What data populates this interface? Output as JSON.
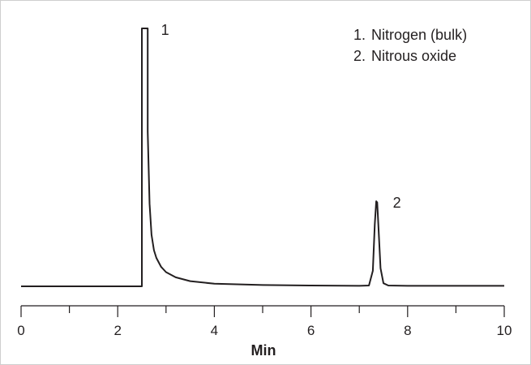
{
  "chart_data": {
    "type": "line",
    "title": "",
    "xlabel": "Min",
    "ylabel": "",
    "xlim": [
      0,
      10
    ],
    "x_ticks": [
      0,
      2,
      4,
      6,
      8,
      10
    ],
    "x_tick_labels": [
      "0",
      "2",
      "4",
      "6",
      "8",
      "10"
    ],
    "x_minor_tick_step": 1,
    "grid": false,
    "legend_position": "top-right",
    "legend": [
      {
        "marker": "1.",
        "name": "Nitrogen (bulk)"
      },
      {
        "marker": "2.",
        "name": "Nitrous oxide"
      }
    ],
    "series": [
      {
        "x": [
          0,
          1,
          2,
          2.4,
          2.5,
          2.5,
          2.62,
          2.62,
          2.66,
          2.7,
          2.75,
          2.8,
          2.9,
          3.0,
          3.2,
          3.5,
          4.0,
          5.0,
          6.0,
          7.0,
          7.2,
          7.28,
          7.32,
          7.35,
          7.37,
          7.4,
          7.44,
          7.5,
          7.6,
          8.0,
          9.0,
          10.0
        ],
        "y": [
          0,
          0,
          0,
          0,
          0,
          1.0,
          1.0,
          0.6,
          0.32,
          0.2,
          0.14,
          0.11,
          0.075,
          0.055,
          0.035,
          0.02,
          0.01,
          0.005,
          0.003,
          0.002,
          0.003,
          0.06,
          0.24,
          0.33,
          0.325,
          0.22,
          0.07,
          0.012,
          0.003,
          0.002,
          0.002,
          0.002
        ]
      }
    ],
    "peaks": [
      {
        "label": "1",
        "x": 2.56,
        "y": 1.0
      },
      {
        "label": "2",
        "x": 7.36,
        "y": 0.33
      }
    ]
  }
}
